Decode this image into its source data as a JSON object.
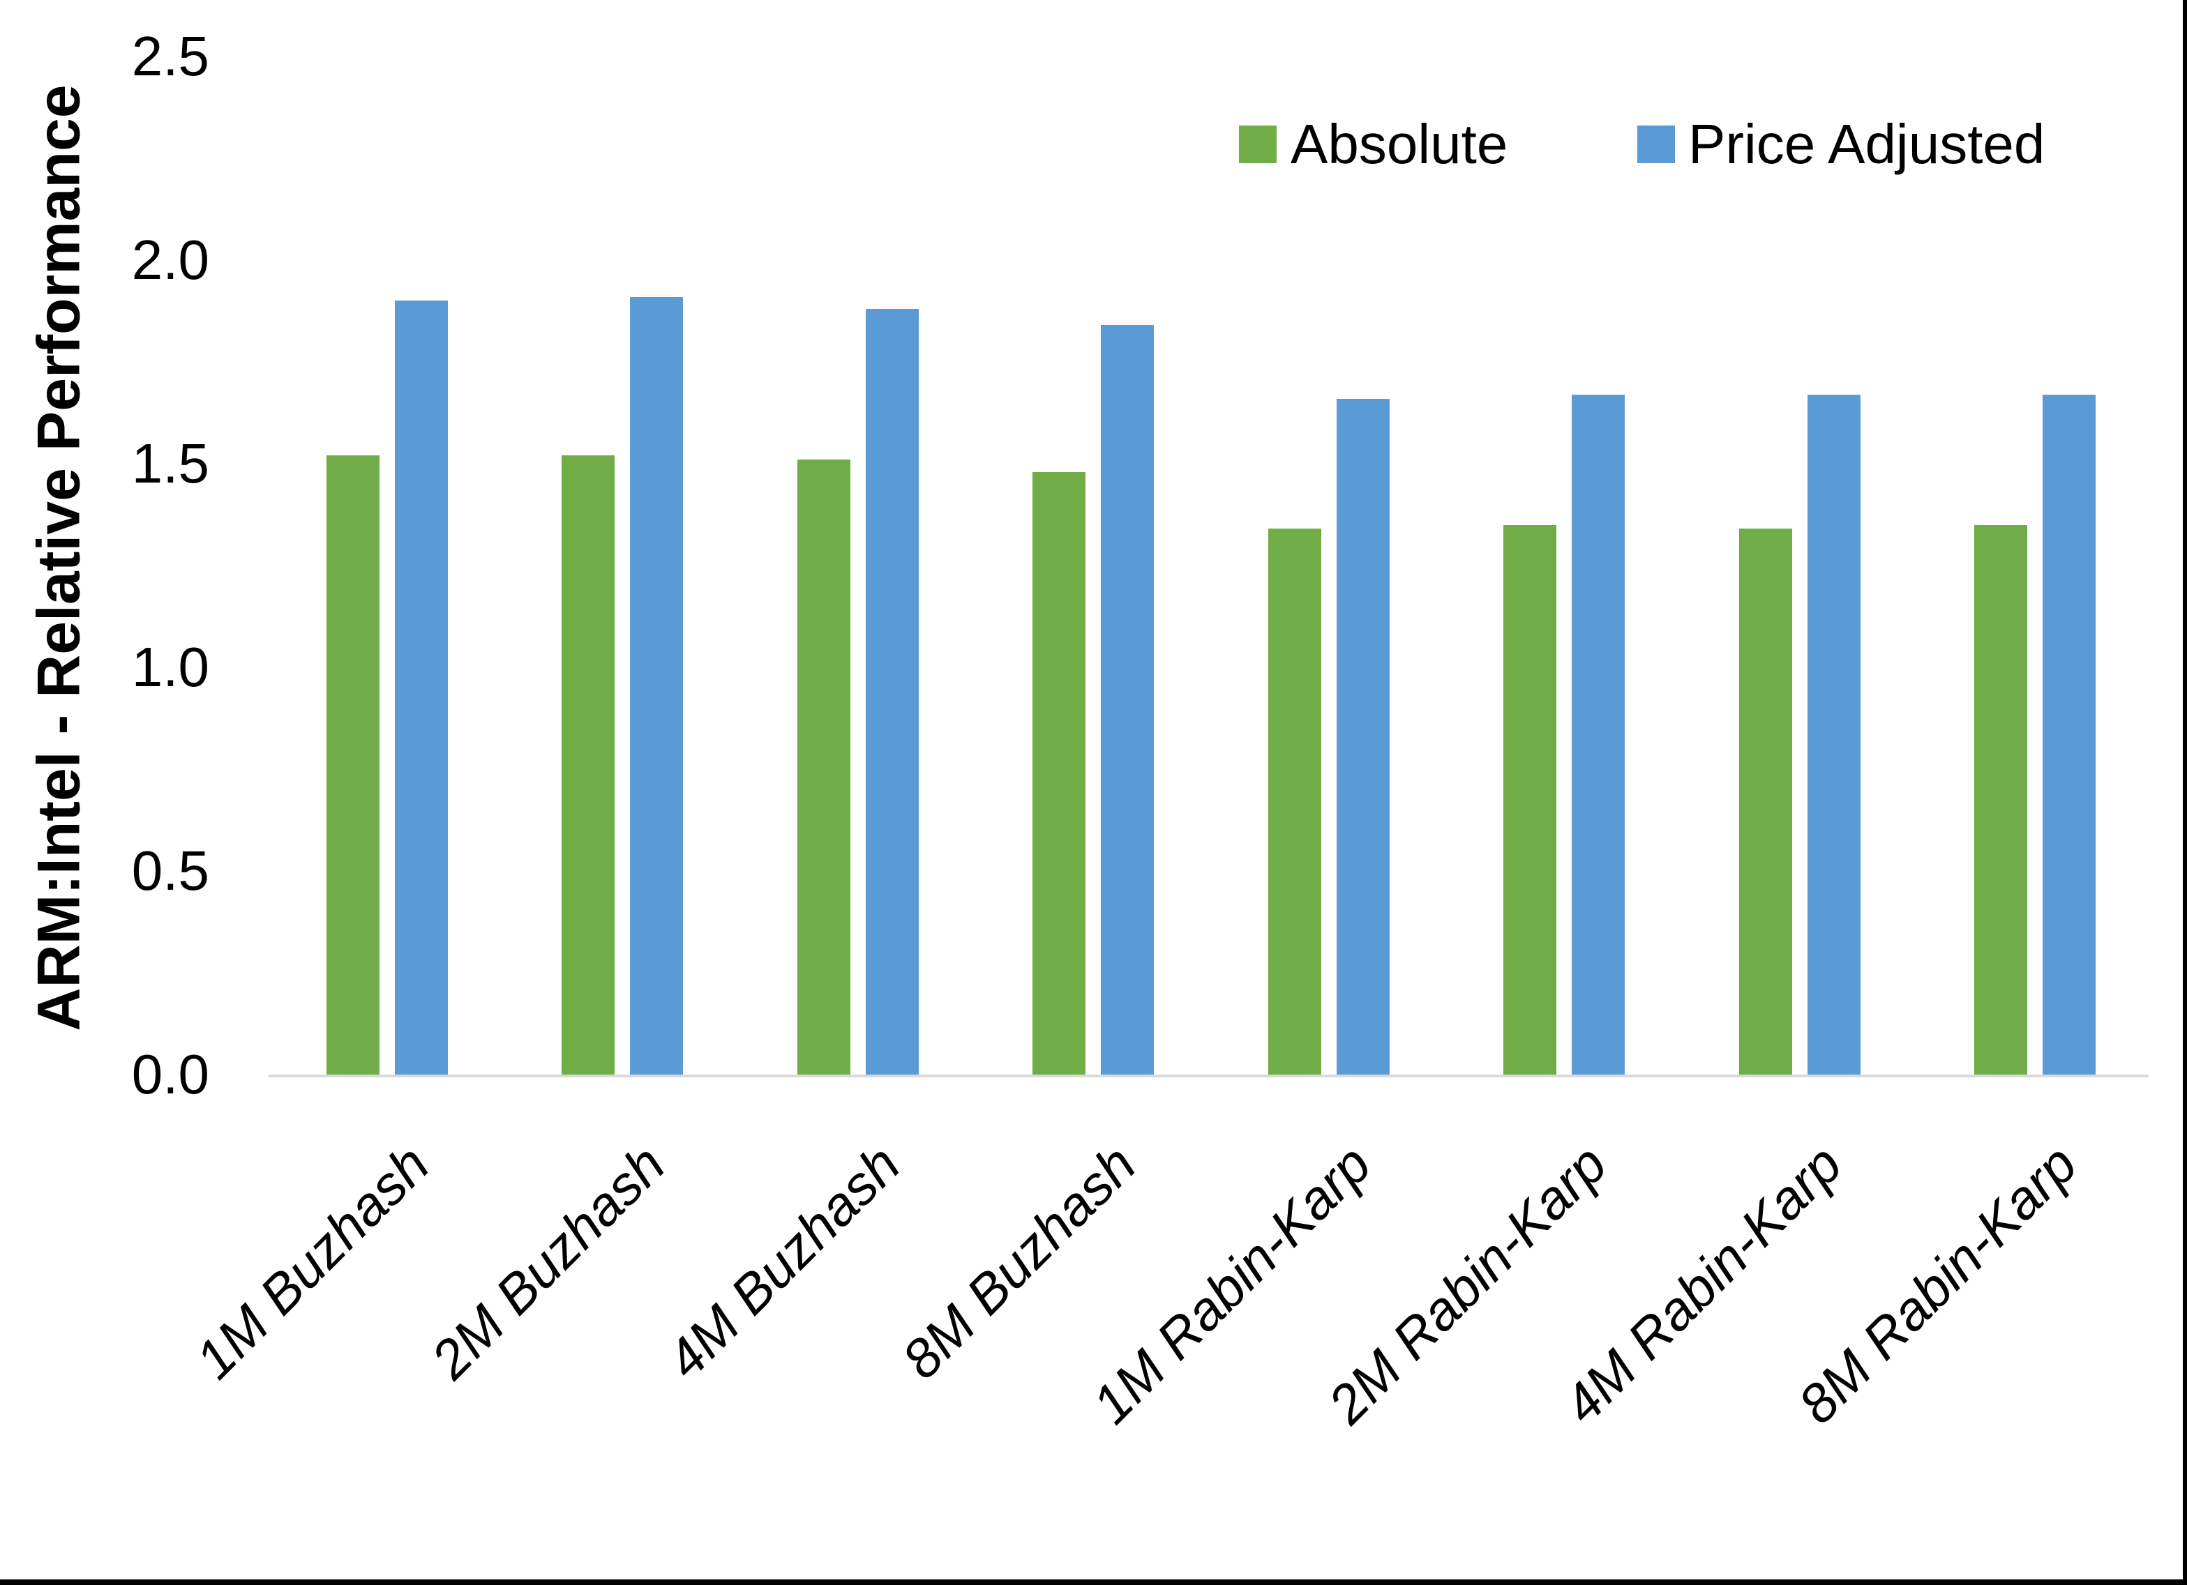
{
  "chart_data": {
    "type": "bar",
    "title": "",
    "categories": [
      "1M Buzhash",
      "2M Buzhash",
      "4M Buzhash",
      "8M Buzhash",
      "1M Rabin-Karp",
      "2M Rabin-Karp",
      "4M Rabin-Karp",
      "8M Rabin-Karp"
    ],
    "series": [
      {
        "name": "Absolute",
        "color": "#70AD47",
        "values": [
          1.52,
          1.52,
          1.51,
          1.48,
          1.34,
          1.35,
          1.34,
          1.35
        ]
      },
      {
        "name": "Price Adjusted",
        "color": "#5B9BD5",
        "values": [
          1.9,
          1.91,
          1.88,
          1.84,
          1.66,
          1.67,
          1.67,
          1.67
        ]
      }
    ],
    "xlabel": "",
    "ylabel": "ARM:Intel - Relative Performance",
    "ylim": [
      0,
      2.5
    ],
    "ytick_labels": [
      "0.0",
      "0.5",
      "1.0",
      "1.5",
      "2.0",
      "2.5"
    ],
    "grid": false,
    "legend_position": "top-right",
    "colors": {
      "axis_line": "#D9D9D9",
      "background": "#FFFFFF",
      "window_border": "#000000",
      "text": "#000000"
    }
  }
}
